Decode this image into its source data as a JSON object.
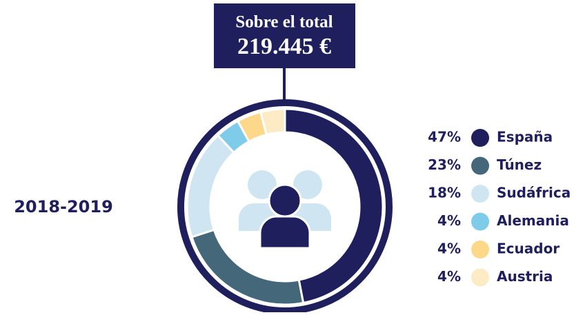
{
  "chart_data": {
    "type": "donut",
    "title": "Sobre el total",
    "subtitle": "219.445 €",
    "period": "2018-2019",
    "categories": [
      "España",
      "Túnez",
      "Sudáfrica",
      "Alemania",
      "Ecuador",
      "Austria"
    ],
    "values": [
      47,
      23,
      18,
      4,
      4,
      4
    ],
    "value_labels": [
      "47%",
      "23%",
      "18%",
      "4%",
      "4%",
      "4%"
    ],
    "colors": [
      "#1e1f5c",
      "#44677a",
      "#cfe6f2",
      "#7fcbea",
      "#fdd88b",
      "#fdebc6"
    ],
    "legend": "right"
  }
}
